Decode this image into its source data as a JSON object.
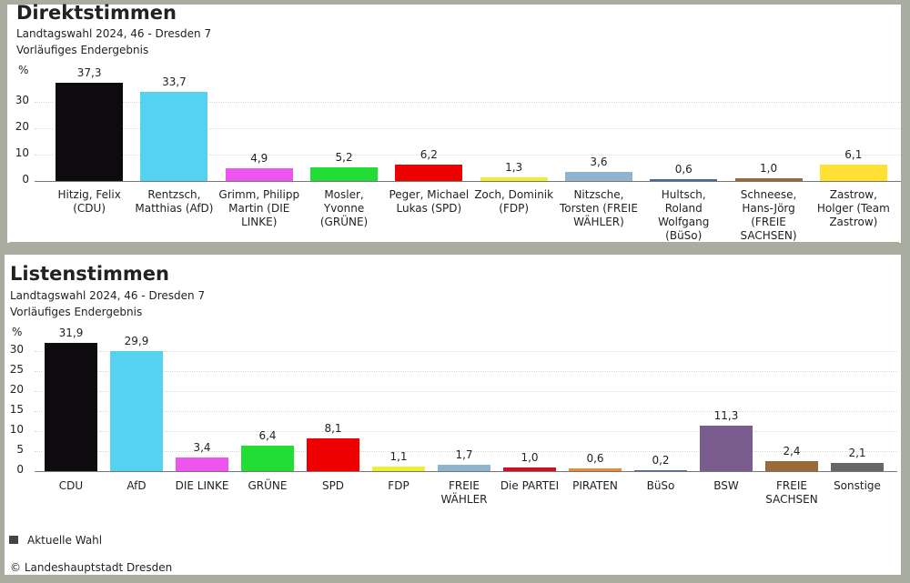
{
  "chart_data": [
    {
      "type": "bar",
      "title": "Direktstimmen",
      "subtitle": "Landtagswahl 2024, 46 - Dresden 7",
      "note": "Vorläufiges Endergebnis",
      "y_label": "%",
      "categories": [
        "Hitzig, Felix (CDU)",
        "Rentzsch, Matthias (AfD)",
        "Grimm, Philipp Martin (DIE LINKE)",
        "Mosler, Yvonne (GRÜNE)",
        "Peger, Michael Lukas (SPD)",
        "Zoch, Dominik (FDP)",
        "Nitzsche, Torsten (FREIE WÄHLER)",
        "Hultsch, Roland Wolfgang (BüSo)",
        "Schneese, Hans-Jörg (FREIE SACHSEN)",
        "Zastrow, Holger (Team Zastrow)"
      ],
      "values": [
        37.3,
        33.7,
        4.9,
        5.2,
        6.2,
        1.3,
        3.6,
        0.6,
        1.0,
        6.1
      ],
      "value_labels": [
        "37,3",
        "33,7",
        "4,9",
        "5,2",
        "6,2",
        "1,3",
        "3,6",
        "0,6",
        "1,0",
        "6,1"
      ],
      "colors": [
        "#0d0b0e",
        "#55d2f0",
        "#ee55ee",
        "#22dd33",
        "#ee0000",
        "#eeee33",
        "#8fb4cf",
        "#4466aa",
        "#9b6a3a",
        "#ffe033"
      ],
      "ylim": [
        0,
        40
      ],
      "yticks": [
        0,
        10,
        20,
        30
      ],
      "grid": true
    },
    {
      "type": "bar",
      "title": "Listenstimmen",
      "subtitle": "Landtagswahl 2024, 46 - Dresden 7",
      "note": "Vorläufiges Endergebnis",
      "y_label": "%",
      "categories": [
        "CDU",
        "AfD",
        "DIE LINKE",
        "GRÜNE",
        "SPD",
        "FDP",
        "FREIE WÄHLER",
        "Die PARTEI",
        "PIRATEN",
        "BüSo",
        "BSW",
        "FREIE SACHSEN",
        "Sonstige"
      ],
      "values": [
        31.9,
        29.9,
        3.4,
        6.4,
        8.1,
        1.1,
        1.7,
        1.0,
        0.6,
        0.2,
        11.3,
        2.4,
        2.1
      ],
      "value_labels": [
        "31,9",
        "29,9",
        "3,4",
        "6,4",
        "8,1",
        "1,1",
        "1,7",
        "1,0",
        "0,6",
        "0,2",
        "11,3",
        "2,4",
        "2,1"
      ],
      "colors": [
        "#0d0b0e",
        "#55d2f0",
        "#ee55ee",
        "#22dd33",
        "#ee0000",
        "#eeee33",
        "#8fb4cf",
        "#cc1122",
        "#ee8833",
        "#4466aa",
        "#7a5c8e",
        "#9b6a3a",
        "#666666"
      ],
      "ylim": [
        0,
        34
      ],
      "yticks": [
        0,
        5,
        10,
        15,
        20,
        25,
        30
      ],
      "grid": true
    }
  ],
  "legend": "Aktuelle Wahl",
  "source": "© Landeshauptstadt Dresden"
}
